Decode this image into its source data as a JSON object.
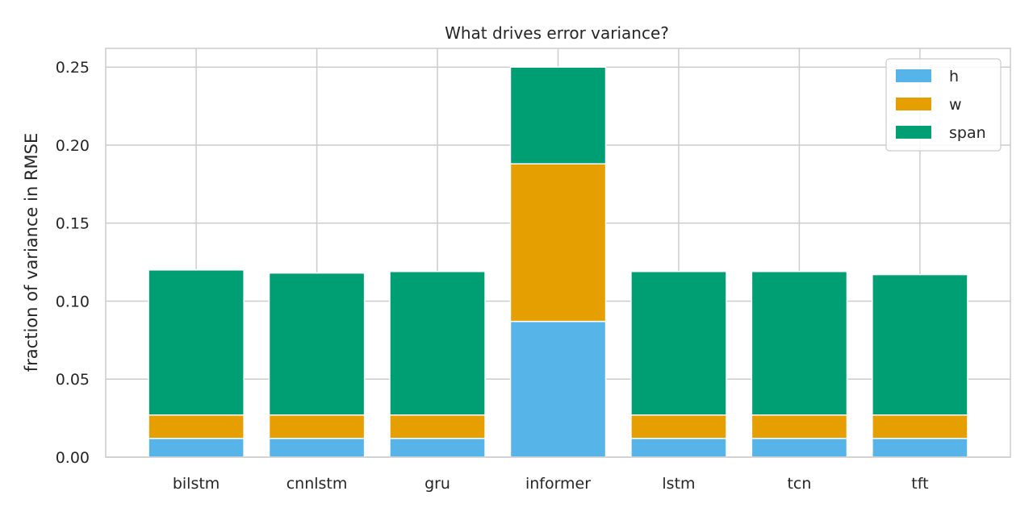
{
  "chart_data": {
    "type": "bar",
    "stacked": true,
    "title": "What drives error variance?",
    "xlabel": "",
    "ylabel": "fraction of variance in RMSE",
    "categories": [
      "bilstm",
      "cnnlstm",
      "gru",
      "informer",
      "lstm",
      "tcn",
      "tft"
    ],
    "series": [
      {
        "name": "h",
        "color": "#56b4e9",
        "values": [
          0.012,
          0.012,
          0.012,
          0.087,
          0.012,
          0.012,
          0.012
        ]
      },
      {
        "name": "w",
        "color": "#e69f00",
        "values": [
          0.015,
          0.015,
          0.015,
          0.101,
          0.015,
          0.015,
          0.015
        ]
      },
      {
        "name": "span",
        "color": "#009e73",
        "values": [
          0.093,
          0.091,
          0.092,
          0.062,
          0.092,
          0.092,
          0.09
        ]
      }
    ],
    "ylim": [
      0,
      0.262
    ],
    "yticks": [
      "0.00",
      "0.05",
      "0.10",
      "0.15",
      "0.20",
      "0.25"
    ],
    "grid": true,
    "legend": "top-right"
  }
}
